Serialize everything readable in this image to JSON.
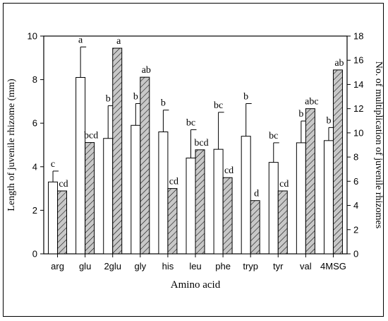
{
  "chart_data": {
    "type": "bar",
    "xlabel": "Amino acid",
    "ylabel": "Length of juvenile rhizome (mm)",
    "y2label": "No. of multiplication of juvenile rhizomes",
    "ylim": [
      0,
      10
    ],
    "y2lim": [
      0,
      18
    ],
    "yticks": [
      "0",
      "2",
      "4",
      "6",
      "8",
      "10"
    ],
    "y2ticks": [
      "0",
      "2",
      "4",
      "6",
      "8",
      "10",
      "12",
      "14",
      "16",
      "18"
    ],
    "categories": [
      "arg",
      "glu",
      "2glu",
      "gly",
      "his",
      "leu",
      "phe",
      "tryp",
      "tyr",
      "val",
      "4MSG"
    ],
    "series": [
      {
        "axis": "left",
        "fill": "#ffffff",
        "values": [
          3.3,
          8.1,
          5.3,
          5.9,
          5.6,
          4.4,
          4.8,
          5.4,
          4.2,
          5.1,
          5.2
        ],
        "errors": [
          0.5,
          1.4,
          1.5,
          1.0,
          1.0,
          1.3,
          1.7,
          1.5,
          0.9,
          1.0,
          0.6
        ],
        "labels": [
          "c",
          "a",
          "b",
          "b",
          "b",
          "bc",
          "bc",
          "b",
          "bc",
          "b",
          "b"
        ]
      },
      {
        "axis": "right",
        "fill": "#c8c8c8",
        "hatch": true,
        "values": [
          5.2,
          9.2,
          17.0,
          14.6,
          5.4,
          8.6,
          6.3,
          4.4,
          5.2,
          12.0,
          15.2
        ],
        "labels": [
          "cd",
          "bcd",
          "a",
          "ab",
          "cd",
          "bcd",
          "cd",
          "d",
          "cd",
          "abc",
          "ab"
        ]
      }
    ]
  }
}
